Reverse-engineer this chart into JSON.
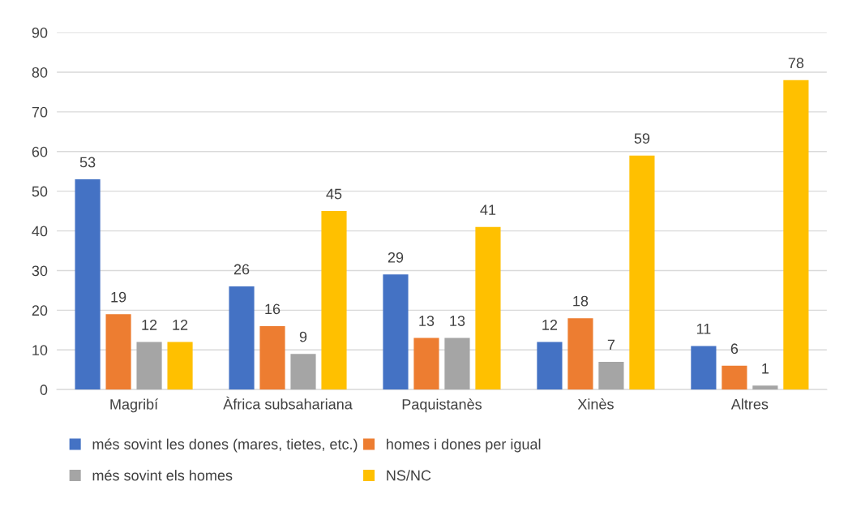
{
  "chart_data": {
    "type": "bar",
    "categories": [
      "Magribí",
      "Àfrica subsahariana",
      "Paquistanès",
      "Xinès",
      "Altres"
    ],
    "series": [
      {
        "name": "més sovint les dones (mares, tietes, etc.)",
        "color": "#4472c4",
        "values": [
          53,
          26,
          29,
          12,
          11
        ]
      },
      {
        "name": "homes i dones per igual",
        "color": "#ed7d31",
        "values": [
          19,
          16,
          13,
          18,
          6
        ]
      },
      {
        "name": "més sovint els homes",
        "color": "#a5a5a5",
        "values": [
          12,
          9,
          13,
          7,
          1
        ]
      },
      {
        "name": "NS/NC",
        "color": "#ffc000",
        "values": [
          12,
          45,
          41,
          59,
          78
        ]
      }
    ],
    "ylim": [
      0,
      90
    ],
    "yticks": [
      0,
      10,
      20,
      30,
      40,
      50,
      60,
      70,
      80,
      90
    ],
    "grid": "y",
    "legend": "bottom",
    "data_labels": true
  }
}
